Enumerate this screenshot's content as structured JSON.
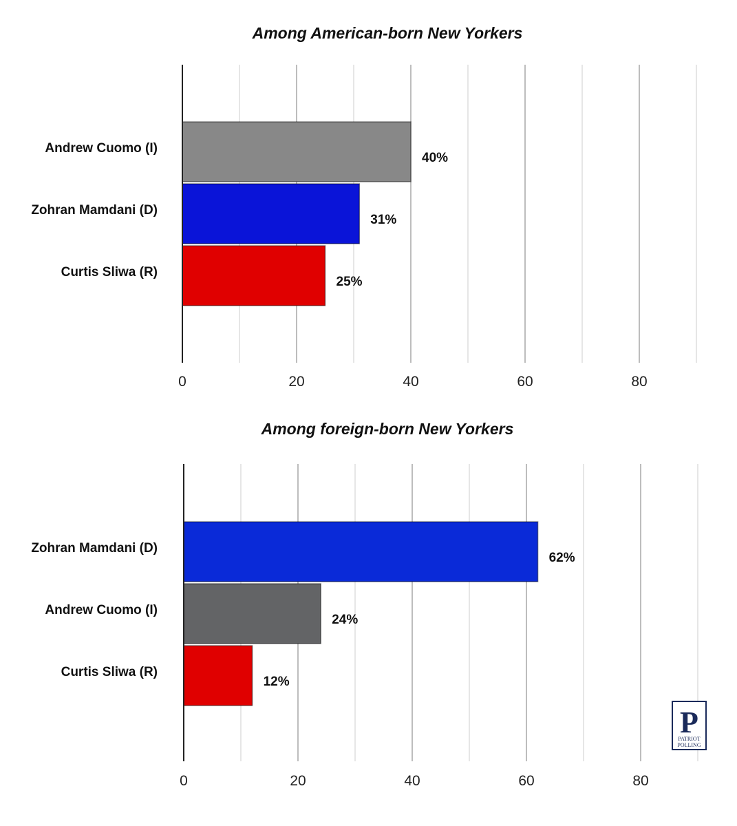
{
  "chart_data": [
    {
      "type": "bar",
      "orientation": "horizontal",
      "title": "Among American-born New Yorkers",
      "categories": [
        "Andrew Cuomo (I)",
        "Zohran Mamdani (D)",
        "Curtis Sliwa (R)"
      ],
      "values": [
        40,
        31,
        25
      ],
      "value_labels": [
        "40%",
        "31%",
        "25%"
      ],
      "colors": [
        "#888888",
        "#0a14d8",
        "#e00000"
      ],
      "xlim": [
        0,
        90
      ],
      "xticks": [
        0,
        20,
        40,
        60,
        80
      ],
      "grid": true
    },
    {
      "type": "bar",
      "orientation": "horizontal",
      "title": "Among foreign-born New Yorkers",
      "categories": [
        "Zohran Mamdani (D)",
        "Andrew Cuomo (I)",
        "Curtis Sliwa (R)"
      ],
      "values": [
        62,
        24,
        12
      ],
      "value_labels": [
        "62%",
        "24%",
        "12%"
      ],
      "colors": [
        "#0a2ad8",
        "#636466",
        "#e00000"
      ],
      "xlim": [
        0,
        90
      ],
      "xticks": [
        0,
        20,
        40,
        60,
        80
      ],
      "grid": true
    }
  ],
  "logo": {
    "letter": "P",
    "line1": "PATRIOT",
    "line2": "POLLING"
  }
}
